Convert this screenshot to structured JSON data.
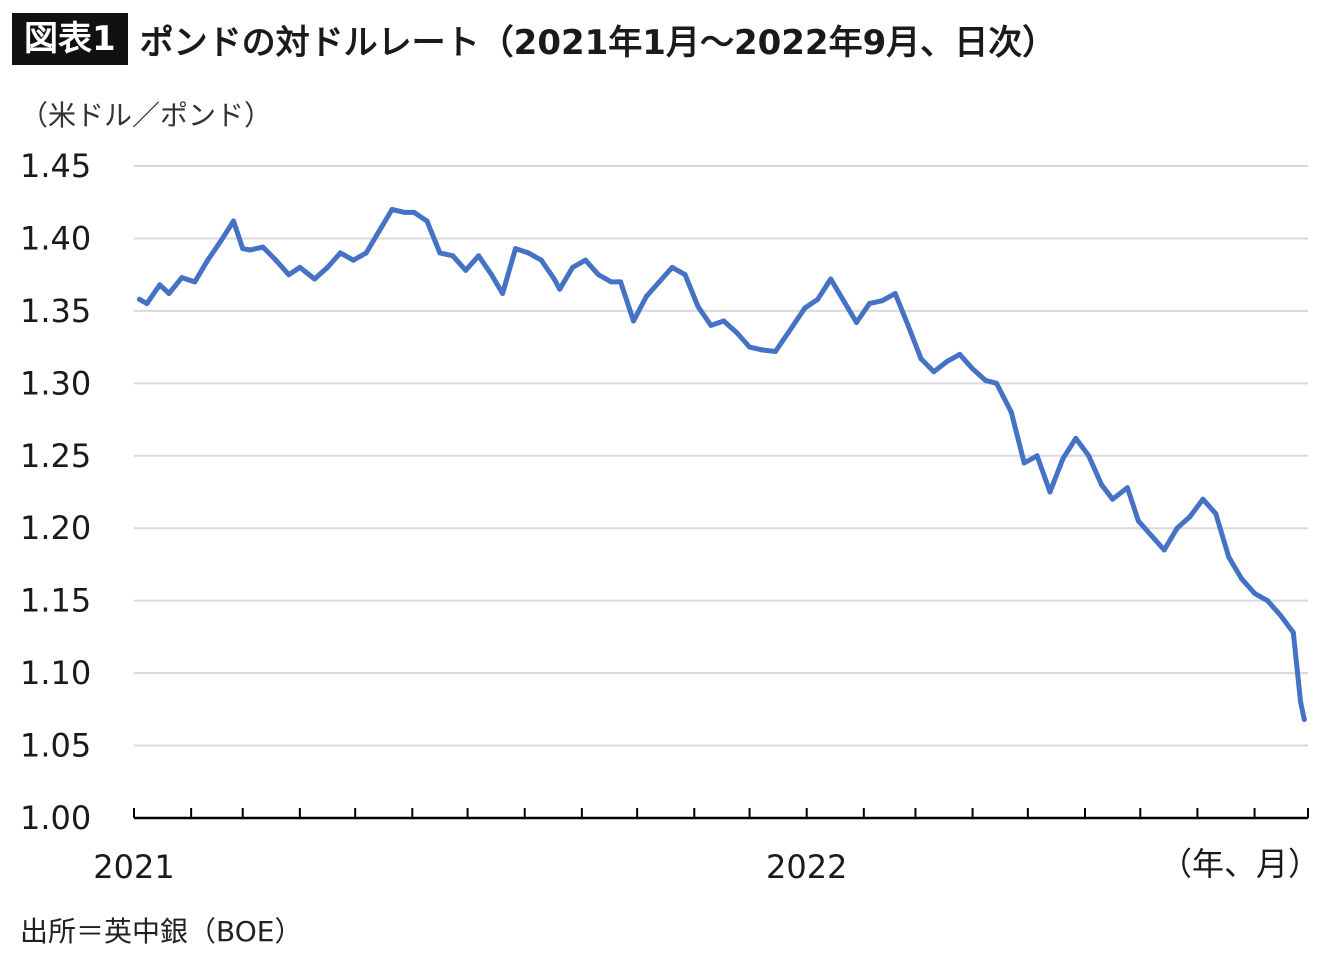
{
  "header": {
    "badge": "図表1",
    "title": "ポンドの対ドルレート（2021年1月～2022年9月、日次）"
  },
  "y_unit_label": "（米ドル／ポンド）",
  "source_label": "出所＝英中銀（BOE）",
  "x_unit_label": "（年、月）",
  "colors": {
    "line": "#4472C4",
    "grid": "#d9d9d9",
    "axis": "#000000"
  },
  "chart_data": {
    "type": "line",
    "title": "ポンドの対ドルレート（2021年1月～2022年9月、日次）",
    "ylabel": "（米ドル／ポンド）",
    "xlabel": "（年、月）",
    "ylim": [
      1.0,
      1.45
    ],
    "yticks": [
      "1.00",
      "1.05",
      "1.10",
      "1.15",
      "1.20",
      "1.25",
      "1.30",
      "1.35",
      "1.40",
      "1.45"
    ],
    "x_tick_labels": [
      {
        "date": "2021-01-01",
        "label": "2021"
      },
      {
        "date": "2022-01-01",
        "label": "2022"
      }
    ],
    "xlim": [
      "2021-01-01",
      "2022-09-30"
    ],
    "grid": true,
    "series": [
      {
        "name": "",
        "x": [
          "2021-01-04",
          "2021-01-08",
          "2021-01-15",
          "2021-01-20",
          "2021-01-27",
          "2021-02-03",
          "2021-02-10",
          "2021-02-17",
          "2021-02-24",
          "2021-03-01",
          "2021-03-05",
          "2021-03-12",
          "2021-03-19",
          "2021-03-26",
          "2021-04-01",
          "2021-04-09",
          "2021-04-16",
          "2021-04-23",
          "2021-04-30",
          "2021-05-07",
          "2021-05-14",
          "2021-05-21",
          "2021-05-28",
          "2021-06-02",
          "2021-06-09",
          "2021-06-16",
          "2021-06-23",
          "2021-06-30",
          "2021-07-07",
          "2021-07-14",
          "2021-07-20",
          "2021-07-27",
          "2021-08-03",
          "2021-08-10",
          "2021-08-17",
          "2021-08-20",
          "2021-08-27",
          "2021-09-03",
          "2021-09-10",
          "2021-09-17",
          "2021-09-22",
          "2021-09-29",
          "2021-10-06",
          "2021-10-13",
          "2021-10-20",
          "2021-10-27",
          "2021-11-03",
          "2021-11-10",
          "2021-11-17",
          "2021-11-24",
          "2021-12-01",
          "2021-12-08",
          "2021-12-15",
          "2021-12-22",
          "2021-12-31",
          "2022-01-07",
          "2022-01-14",
          "2022-01-21",
          "2022-01-28",
          "2022-02-04",
          "2022-02-11",
          "2022-02-18",
          "2022-02-25",
          "2022-03-04",
          "2022-03-11",
          "2022-03-18",
          "2022-03-25",
          "2022-04-01",
          "2022-04-08",
          "2022-04-14",
          "2022-04-22",
          "2022-04-29",
          "2022-05-06",
          "2022-05-13",
          "2022-05-20",
          "2022-05-27",
          "2022-06-03",
          "2022-06-10",
          "2022-06-16",
          "2022-06-24",
          "2022-06-30",
          "2022-07-07",
          "2022-07-14",
          "2022-07-21",
          "2022-07-28",
          "2022-08-04",
          "2022-08-11",
          "2022-08-18",
          "2022-08-25",
          "2022-09-01",
          "2022-09-08",
          "2022-09-15",
          "2022-09-22",
          "2022-09-26",
          "2022-09-28"
        ],
        "values": [
          1.358,
          1.355,
          1.368,
          1.362,
          1.373,
          1.37,
          1.385,
          1.398,
          1.412,
          1.393,
          1.392,
          1.394,
          1.385,
          1.375,
          1.38,
          1.372,
          1.38,
          1.39,
          1.385,
          1.39,
          1.405,
          1.42,
          1.418,
          1.418,
          1.412,
          1.39,
          1.388,
          1.378,
          1.388,
          1.375,
          1.362,
          1.393,
          1.39,
          1.385,
          1.372,
          1.365,
          1.38,
          1.385,
          1.375,
          1.37,
          1.37,
          1.343,
          1.36,
          1.37,
          1.38,
          1.375,
          1.353,
          1.34,
          1.343,
          1.335,
          1.325,
          1.323,
          1.322,
          1.335,
          1.352,
          1.358,
          1.372,
          1.357,
          1.342,
          1.355,
          1.357,
          1.362,
          1.34,
          1.317,
          1.308,
          1.315,
          1.32,
          1.31,
          1.302,
          1.3,
          1.28,
          1.245,
          1.25,
          1.225,
          1.248,
          1.262,
          1.25,
          1.23,
          1.22,
          1.228,
          1.205,
          1.195,
          1.185,
          1.2,
          1.208,
          1.22,
          1.21,
          1.18,
          1.165,
          1.155,
          1.15,
          1.14,
          1.128,
          1.08,
          1.068
        ]
      }
    ]
  }
}
